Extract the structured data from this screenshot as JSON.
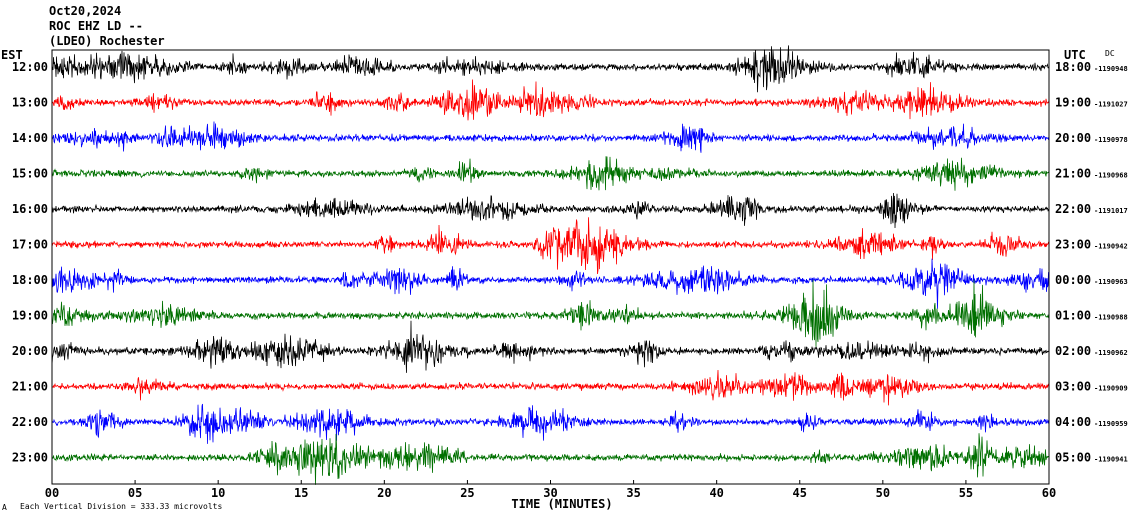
{
  "header": {
    "date": "Oct20,2024",
    "channel": "ROC EHZ LD --",
    "station": "(LDEO) Rochester"
  },
  "left_timezone": "EST",
  "right_timezone": "UTC",
  "dc_label": "DC",
  "footer": {
    "mark": "A",
    "scale_text": "Each Vertical Division = 333.33 microvolts"
  },
  "chart_data": {
    "type": "line",
    "title": "",
    "xlabel": "TIME (MINUTES)",
    "ylabel": "",
    "xlim": [
      0,
      60
    ],
    "x_ticks": [
      "00",
      "05",
      "10",
      "15",
      "20",
      "25",
      "30",
      "35",
      "40",
      "45",
      "50",
      "55",
      "60"
    ],
    "trace_colors": [
      "#000000",
      "#ff0000",
      "#0000ff",
      "#007000"
    ],
    "rows": [
      {
        "local": "12:00",
        "utc": "18:00",
        "dc": "-1190948"
      },
      {
        "local": "13:00",
        "utc": "19:00",
        "dc": "-1191027"
      },
      {
        "local": "14:00",
        "utc": "20:00",
        "dc": "-1190978"
      },
      {
        "local": "15:00",
        "utc": "21:00",
        "dc": "-1190968"
      },
      {
        "local": "16:00",
        "utc": "22:00",
        "dc": "-1191017"
      },
      {
        "local": "17:00",
        "utc": "23:00",
        "dc": "-1190942"
      },
      {
        "local": "18:00",
        "utc": "00:00",
        "dc": "-1190963"
      },
      {
        "local": "19:00",
        "utc": "01:00",
        "dc": "-1190988"
      },
      {
        "local": "20:00",
        "utc": "02:00",
        "dc": "-1190962"
      },
      {
        "local": "21:00",
        "utc": "03:00",
        "dc": "-1190909"
      },
      {
        "local": "22:00",
        "utc": "04:00",
        "dc": "-1190959"
      },
      {
        "local": "23:00",
        "utc": "05:00",
        "dc": "-1190941"
      }
    ]
  }
}
